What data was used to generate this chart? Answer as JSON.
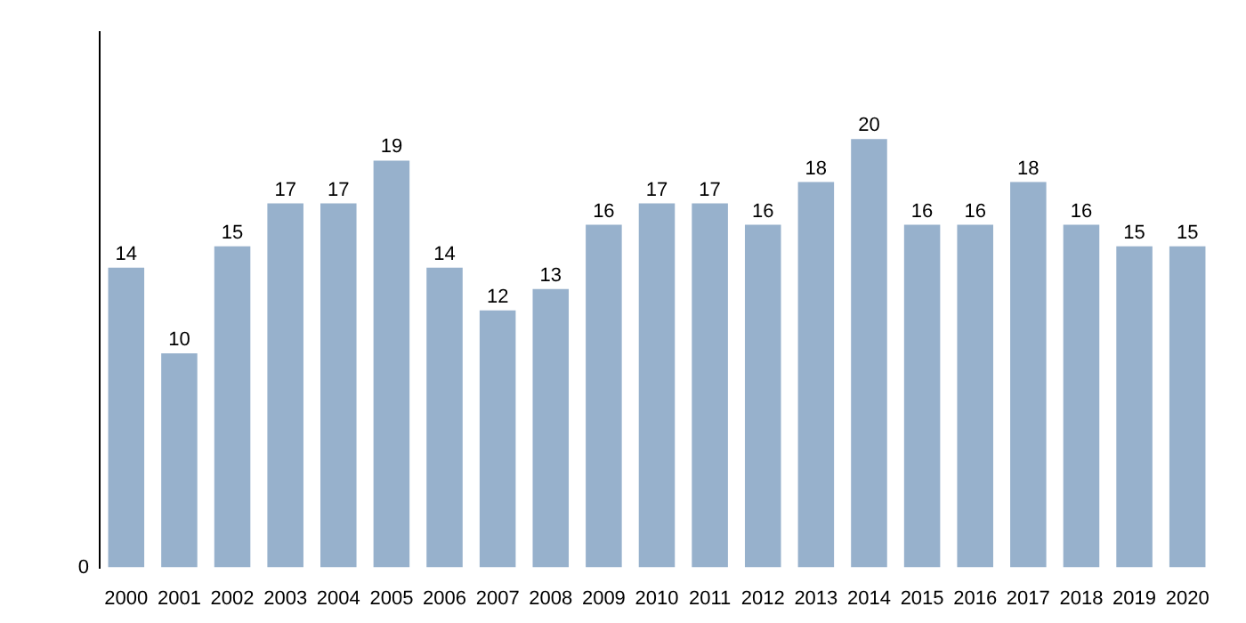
{
  "chart_data": {
    "type": "bar",
    "categories": [
      "2000",
      "2001",
      "2002",
      "2003",
      "2004",
      "2005",
      "2006",
      "2007",
      "2008",
      "2009",
      "2010",
      "2011",
      "2012",
      "2013",
      "2014",
      "2015",
      "2016",
      "2017",
      "2018",
      "2019",
      "2020"
    ],
    "values": [
      14,
      10,
      15,
      17,
      17,
      19,
      14,
      12,
      13,
      16,
      17,
      17,
      16,
      18,
      20,
      16,
      16,
      18,
      16,
      15,
      15
    ],
    "color": "#97b1cc",
    "data_labels": true,
    "annotations": [
      "0"
    ]
  }
}
